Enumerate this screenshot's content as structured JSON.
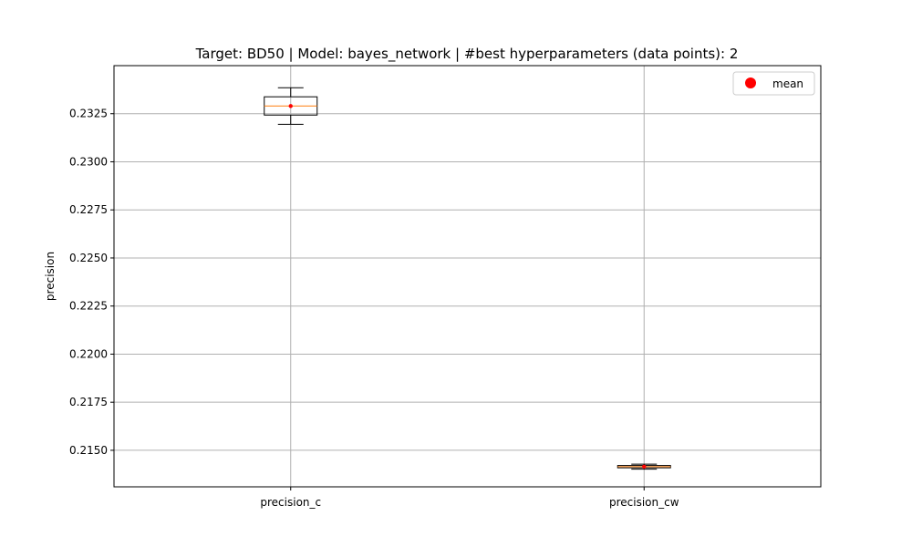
{
  "chart_data": {
    "type": "box",
    "title": "Target: BD50 | Model: bayes_network | #best hyperparameters (data points): 2",
    "xlabel": "",
    "ylabel": "precision",
    "categories": [
      "precision_c",
      "precision_cw"
    ],
    "ylim": [
      0.2131,
      0.235
    ],
    "yticks": [
      0.215,
      0.2175,
      0.22,
      0.2225,
      0.225,
      0.2275,
      0.23,
      0.2325
    ],
    "ytick_labels": [
      "0.2150",
      "0.2175",
      "0.2200",
      "0.2225",
      "0.2250",
      "0.2275",
      "0.2300",
      "0.2325"
    ],
    "grid": true,
    "legend": {
      "placement": "top-right",
      "entries": [
        "mean"
      ]
    },
    "boxes": [
      {
        "category": "precision_c",
        "whisker_low": 0.23195,
        "q1": 0.23243,
        "median": 0.2329,
        "q3": 0.23338,
        "whisker_high": 0.23385,
        "mean": 0.2329
      },
      {
        "category": "precision_cw",
        "whisker_low": 0.21402,
        "q1": 0.21409,
        "median": 0.21415,
        "q3": 0.21421,
        "whisker_high": 0.21428,
        "mean": 0.21415
      }
    ],
    "colors": {
      "box": "#000000",
      "median": "#ff7f0e",
      "mean": "#ff0000",
      "grid": "#b0b0b0"
    }
  }
}
